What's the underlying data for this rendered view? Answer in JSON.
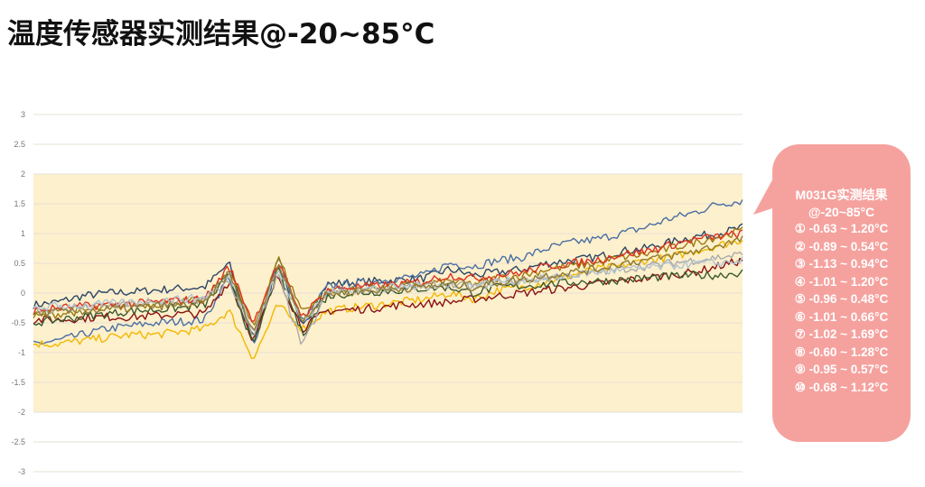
{
  "title": "温度传感器实测结果@-20~85°C",
  "callout": {
    "title": "M031G实测结果",
    "subtitle": "@-20~85°C",
    "rows": [
      "① -0.63 ~ 1.20°C",
      "② -0.89 ~ 0.54°C",
      "③ -1.13 ~ 0.94°C",
      "④ -1.01 ~ 1.20°C",
      "⑤ -0.96 ~ 0.48°C",
      "⑥ -1.01 ~ 0.66°C",
      "⑦ -1.02 ~ 1.69°C",
      "⑧ -0.60 ~ 1.28°C",
      "⑨ -0.95 ~ 0.57°C",
      "⑩ -0.68 ~ 1.12°C"
    ],
    "color": "#f5a29f"
  },
  "chart_data": {
    "type": "line",
    "ylim": [
      -3,
      3
    ],
    "yticks": [
      "3",
      "2.5",
      "2",
      "1.5",
      "1",
      "0.5",
      "0",
      "-0.5",
      "-1",
      "-1.5",
      "-2",
      "-2.5",
      "-3"
    ],
    "grid": true,
    "highlight_band": {
      "from": -2,
      "to": 2,
      "color": "#fdf0cc"
    },
    "series": [
      {
        "color": "#2d4566",
        "values": [
          -0.2,
          -0.15,
          -0.05,
          0,
          0.02,
          0.05,
          0.08,
          0.1,
          0.5,
          -0.8,
          0.5,
          -0.6,
          0.15,
          0.18,
          0.2,
          0.22,
          0.25,
          0.4,
          0.3,
          0.35,
          0.4,
          0.5,
          0.55,
          0.6,
          0.7,
          0.75,
          0.85,
          0.95,
          1.0,
          1.1
        ]
      },
      {
        "color": "#4a6fa3",
        "values": [
          -0.85,
          -0.8,
          -0.7,
          -0.6,
          -0.55,
          -0.5,
          -0.48,
          -0.45,
          0.3,
          -0.9,
          0.6,
          -0.5,
          0.1,
          0.15,
          0.2,
          0.25,
          0.3,
          0.5,
          0.45,
          0.55,
          0.6,
          0.75,
          0.85,
          0.9,
          1.0,
          1.1,
          1.25,
          1.35,
          1.5,
          1.55
        ]
      },
      {
        "color": "#f2b700",
        "values": [
          -0.85,
          -0.85,
          -0.8,
          -0.75,
          -0.7,
          -0.7,
          -0.65,
          -0.6,
          -0.3,
          -1.1,
          -0.2,
          -0.6,
          -0.3,
          -0.25,
          -0.2,
          -0.15,
          -0.1,
          0.0,
          -0.1,
          0.05,
          0.1,
          0.2,
          0.3,
          0.4,
          0.45,
          0.55,
          0.6,
          0.7,
          0.8,
          0.9
        ]
      },
      {
        "color": "#8a1111",
        "values": [
          -0.45,
          -0.45,
          -0.42,
          -0.4,
          -0.4,
          -0.38,
          -0.35,
          -0.35,
          0.2,
          -0.8,
          0.3,
          -0.6,
          -0.3,
          -0.28,
          -0.25,
          -0.2,
          -0.18,
          -0.15,
          -0.1,
          -0.05,
          0.0,
          0.05,
          0.1,
          0.15,
          0.2,
          0.25,
          0.3,
          0.35,
          0.45,
          0.55
        ]
      },
      {
        "color": "#9a7b12",
        "values": [
          -0.4,
          -0.35,
          -0.3,
          -0.25,
          -0.2,
          -0.18,
          -0.15,
          -0.12,
          0.4,
          -0.6,
          0.6,
          -0.3,
          0.0,
          0.05,
          0.1,
          0.12,
          0.15,
          0.2,
          0.15,
          0.25,
          0.3,
          0.4,
          0.45,
          0.5,
          0.6,
          0.65,
          0.75,
          0.85,
          0.95,
          1.05
        ]
      },
      {
        "color": "#3b5a2e",
        "values": [
          -0.5,
          -0.45,
          -0.4,
          -0.35,
          -0.3,
          -0.28,
          -0.25,
          -0.2,
          0.3,
          -0.9,
          0.4,
          -0.7,
          -0.05,
          0.0,
          0.02,
          0.05,
          0.08,
          0.1,
          0.0,
          0.1,
          0.12,
          0.15,
          0.18,
          0.2,
          0.22,
          0.25,
          0.28,
          0.3,
          0.3,
          0.35
        ]
      },
      {
        "color": "#aaaaaa",
        "values": [
          -0.3,
          -0.28,
          -0.25,
          -0.22,
          -0.2,
          -0.18,
          -0.15,
          -0.12,
          0.2,
          -0.7,
          0.3,
          -0.9,
          0.0,
          0.05,
          0.08,
          0.1,
          0.12,
          0.15,
          0.1,
          0.18,
          0.2,
          0.25,
          0.3,
          0.35,
          0.4,
          0.45,
          0.5,
          0.55,
          0.6,
          0.65
        ]
      },
      {
        "color": "#e03020",
        "values": [
          -0.3,
          -0.25,
          -0.22,
          -0.2,
          -0.18,
          -0.15,
          -0.12,
          -0.1,
          0.45,
          -0.5,
          0.5,
          -0.4,
          0.05,
          0.1,
          0.12,
          0.15,
          0.2,
          0.3,
          0.25,
          0.3,
          0.35,
          0.45,
          0.5,
          0.55,
          0.65,
          0.7,
          0.8,
          0.9,
          0.95,
          1.0
        ]
      },
      {
        "color": "#b0c4d0",
        "values": [
          -0.25,
          -0.22,
          -0.2,
          -0.18,
          -0.15,
          -0.12,
          -0.1,
          -0.08,
          0.3,
          -0.6,
          0.4,
          -0.5,
          0.0,
          0.05,
          0.08,
          0.1,
          0.12,
          0.15,
          0.12,
          0.2,
          0.22,
          0.25,
          0.3,
          0.35,
          0.38,
          0.42,
          0.45,
          0.5,
          0.5,
          0.55
        ]
      },
      {
        "color": "#8f7a30",
        "values": [
          -0.35,
          -0.32,
          -0.3,
          -0.28,
          -0.25,
          -0.22,
          -0.2,
          -0.18,
          0.35,
          -0.7,
          0.5,
          -0.45,
          -0.02,
          0.02,
          0.05,
          0.08,
          0.1,
          0.15,
          0.1,
          0.18,
          0.22,
          0.3,
          0.35,
          0.4,
          0.5,
          0.55,
          0.62,
          0.7,
          0.8,
          0.9
        ]
      }
    ]
  }
}
